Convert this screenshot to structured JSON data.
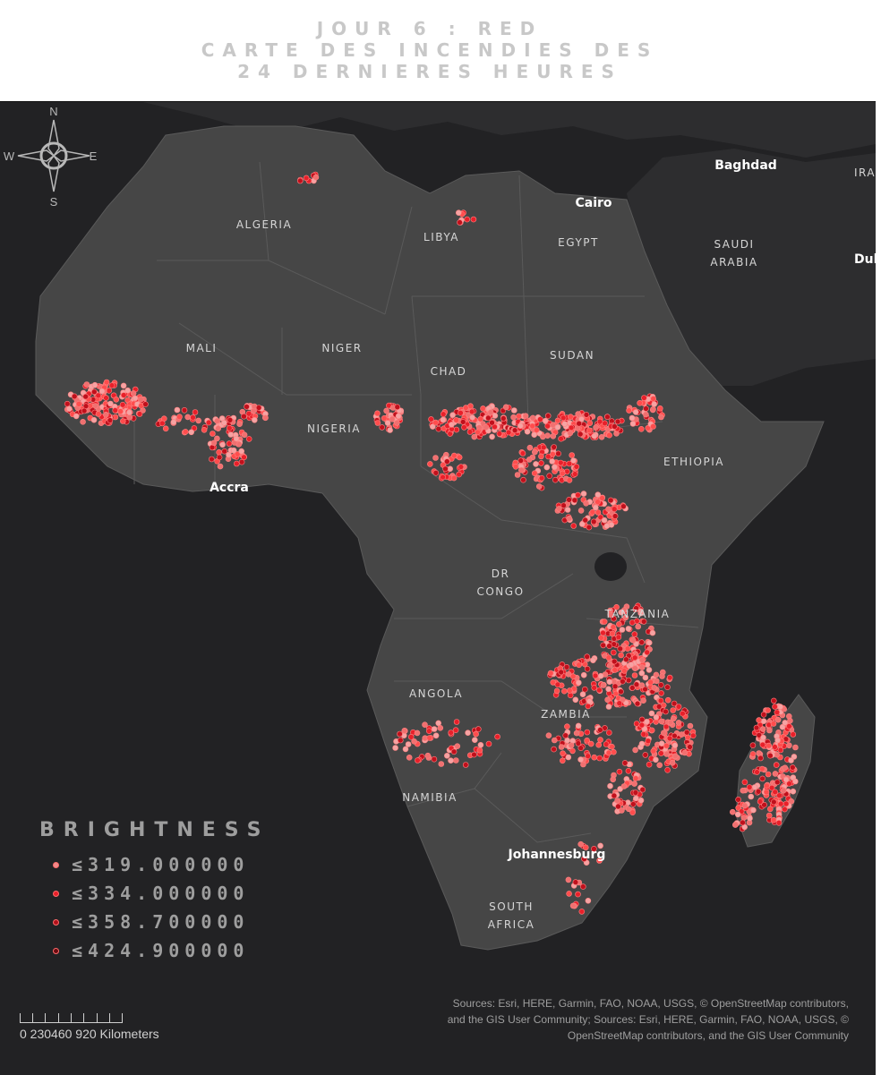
{
  "title": {
    "line1": "JOUR 6 : RED",
    "line2": "CARTE DES INCENDIES DES",
    "line3": "24 DERNIERES HEURES"
  },
  "countries": {
    "algeria": "ALGERIA",
    "libya": "LIBYA",
    "egypt": "EGYPT",
    "saudi1": "SAUDI",
    "saudi2": "ARABIA",
    "mali": "MALI",
    "niger": "NIGER",
    "chad": "CHAD",
    "sudan": "SUDAN",
    "nigeria": "NIGERIA",
    "ethiopia": "ETHIOPIA",
    "drc1": "DR",
    "drc2": "CONGO",
    "tanzania": "TANZANIA",
    "angola": "ANGOLA",
    "zambia": "ZAMBIA",
    "namibia": "NAMIBIA",
    "sa1": "SOUTH",
    "sa2": "AFRICA"
  },
  "cities": {
    "baghdad": "Baghdad",
    "cairo": "Cairo",
    "accra": "Accra",
    "johannesburg": "Johannesburg",
    "ira": "IRA",
    "dub": "Dul"
  },
  "legend": {
    "title": "BRIGHTNESS",
    "classes": [
      {
        "label": "≤319.000000",
        "color": "#f28a8a"
      },
      {
        "label": "≤334.000000",
        "color": "#e8202a"
      },
      {
        "label": "≤358.700000",
        "color": "#b0101a"
      },
      {
        "label": "≤424.900000",
        "color": "#6a0a10"
      }
    ]
  },
  "scale": {
    "text": "0 230460     920 Kilometers"
  },
  "compass": {
    "n": "N",
    "s": "S",
    "e": "E",
    "w": "W"
  },
  "sources": "Sources:  Esri, HERE, Garmin, FAO, NOAA, USGS, © OpenStreetMap contributors, and the GIS User Community; Sources: Esri, HERE, Garmin, FAO, NOAA, USGS, © OpenStreetMap contributors, and the GIS User Community",
  "colors": {
    "land": "#464646",
    "other_land": "#2d2d2f",
    "water": "#222224",
    "fire_light": "#f5a3a3",
    "fire_red": "#e8202a"
  }
}
